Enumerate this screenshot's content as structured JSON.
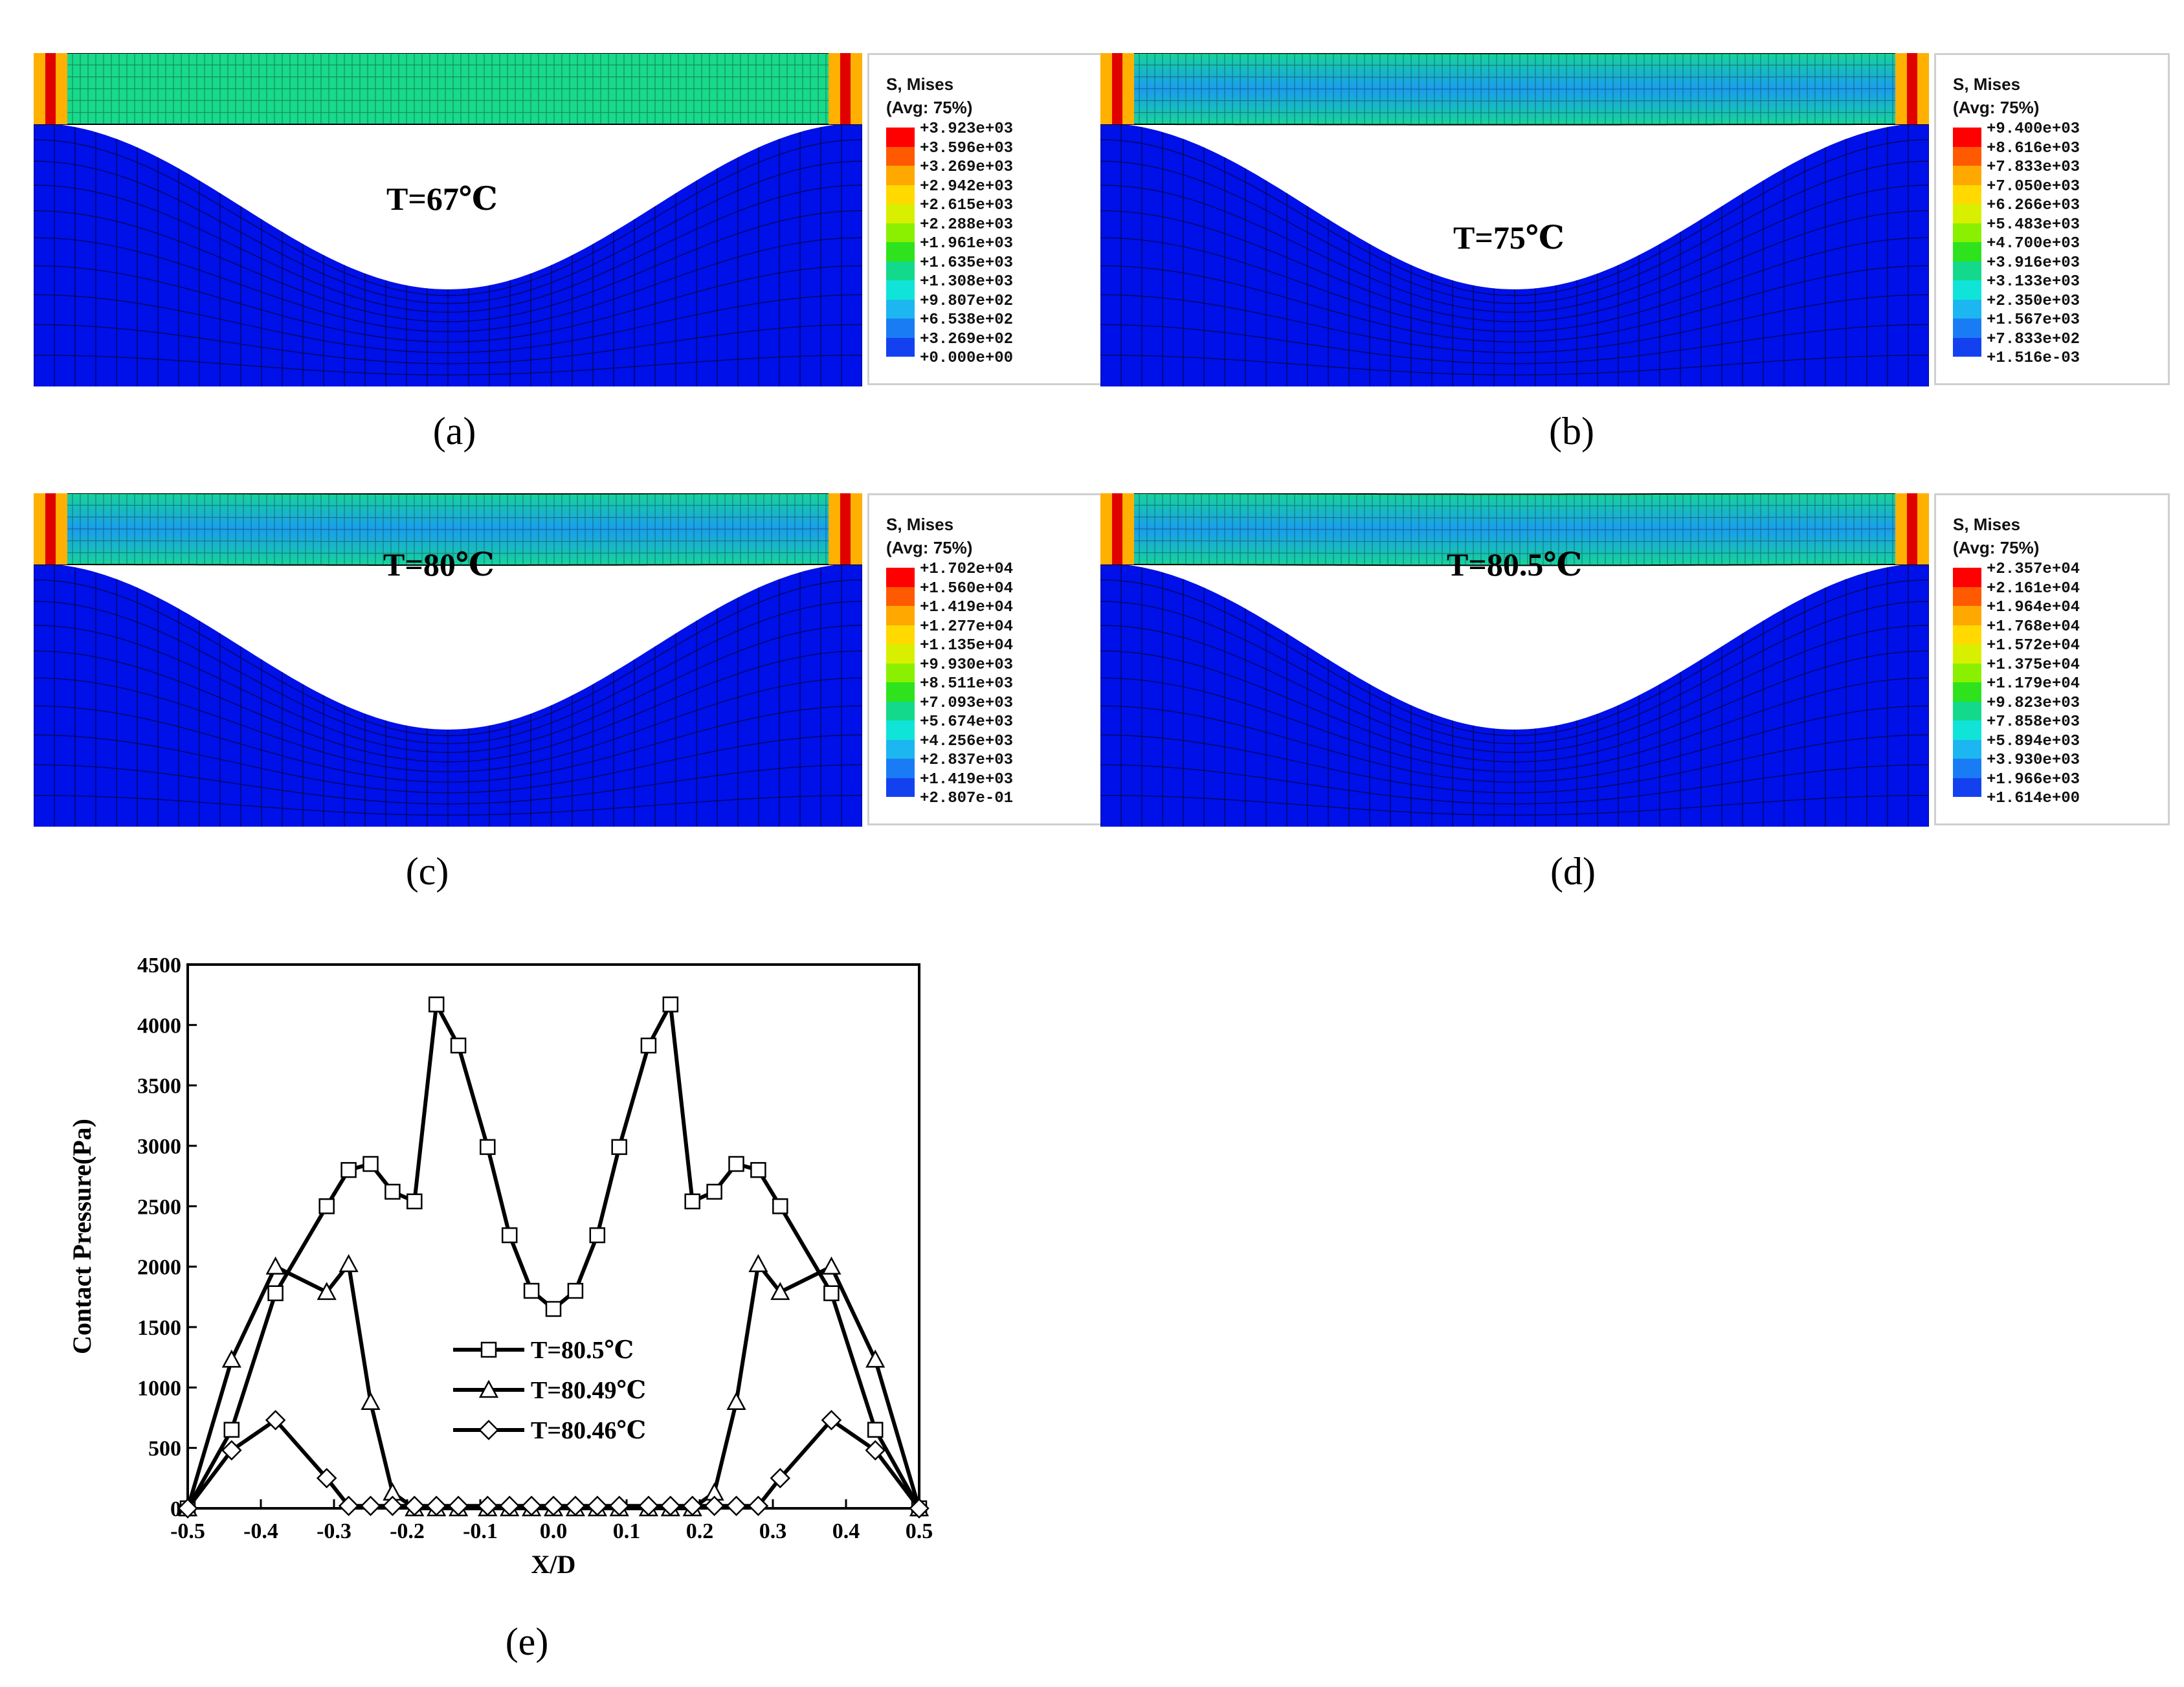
{
  "panels": [
    {
      "caption": "(a)",
      "temperature": "T=67℃",
      "legend": {
        "title": "S, Mises",
        "avg": "(Avg: 75%)",
        "values": [
          "+3.923e+03",
          "+3.596e+03",
          "+3.269e+03",
          "+2.942e+03",
          "+2.615e+03",
          "+2.288e+03",
          "+1.961e+03",
          "+1.635e+03",
          "+1.308e+03",
          "+9.807e+02",
          "+6.538e+02",
          "+3.269e+02",
          "+0.000e+00"
        ]
      }
    },
    {
      "caption": "(b)",
      "temperature": "T=75℃",
      "legend": {
        "title": "S, Mises",
        "avg": "(Avg: 75%)",
        "values": [
          "+9.400e+03",
          "+8.616e+03",
          "+7.833e+03",
          "+7.050e+03",
          "+6.266e+03",
          "+5.483e+03",
          "+4.700e+03",
          "+3.916e+03",
          "+3.133e+03",
          "+2.350e+03",
          "+1.567e+03",
          "+7.833e+02",
          "+1.516e-03"
        ]
      }
    },
    {
      "caption": "(c)",
      "temperature": "T=80℃",
      "legend": {
        "title": "S, Mises",
        "avg": "(Avg: 75%)",
        "values": [
          "+1.702e+04",
          "+1.560e+04",
          "+1.419e+04",
          "+1.277e+04",
          "+1.135e+04",
          "+9.930e+03",
          "+8.511e+03",
          "+7.093e+03",
          "+5.674e+03",
          "+4.256e+03",
          "+2.837e+03",
          "+1.419e+03",
          "+2.807e-01"
        ]
      }
    },
    {
      "caption": "(d)",
      "temperature": "T=80.5℃",
      "legend": {
        "title": "S, Mises",
        "avg": "(Avg: 75%)",
        "values": [
          "+2.357e+04",
          "+2.161e+04",
          "+1.964e+04",
          "+1.768e+04",
          "+1.572e+04",
          "+1.375e+04",
          "+1.179e+04",
          "+9.823e+03",
          "+7.858e+03",
          "+5.894e+03",
          "+3.930e+03",
          "+1.966e+03",
          "+1.614e+00"
        ]
      }
    }
  ],
  "colormap": [
    "#ff0000",
    "#ff5a00",
    "#ffa800",
    "#ffd900",
    "#d8f000",
    "#8af000",
    "#2ee31d",
    "#13d98c",
    "#10e4d8",
    "#1cb6f0",
    "#1a7cf5",
    "#1441f0",
    "#0017ff"
  ],
  "figure_e_caption": "(e)",
  "chart_data": {
    "type": "line",
    "title": "",
    "xlabel": "X/D",
    "ylabel": "Contact Pressure(Pa)",
    "xlim": [
      -0.5,
      0.5
    ],
    "ylim": [
      0,
      4500
    ],
    "xticks": [
      "-0.5",
      "-0.4",
      "-0.3",
      "-0.2",
      "-0.1",
      "0.0",
      "0.1",
      "0.2",
      "0.3",
      "0.4",
      "0.5"
    ],
    "yticks": [
      "0",
      "500",
      "1000",
      "1500",
      "2000",
      "2500",
      "3000",
      "3500",
      "4000",
      "4500"
    ],
    "legend_position": "lower-center",
    "series": [
      {
        "name": "T=80.5℃",
        "marker": "square",
        "x": [
          -0.5,
          -0.44,
          -0.38,
          -0.31,
          -0.28,
          -0.25,
          -0.22,
          -0.19,
          -0.16,
          -0.13,
          -0.09,
          -0.06,
          -0.03,
          0.0,
          0.03,
          0.06,
          0.09,
          0.13,
          0.16,
          0.19,
          0.22,
          0.25,
          0.28,
          0.31,
          0.38,
          0.44,
          0.5
        ],
        "y": [
          0,
          650,
          1780,
          2500,
          2800,
          2850,
          2620,
          2540,
          4170,
          3830,
          2990,
          2260,
          1800,
          1650,
          1800,
          2260,
          2990,
          3830,
          4170,
          2540,
          2620,
          2850,
          2800,
          2500,
          1780,
          650,
          0
        ]
      },
      {
        "name": "T=80.49℃",
        "marker": "triangle",
        "x": [
          -0.5,
          -0.44,
          -0.38,
          -0.31,
          -0.28,
          -0.25,
          -0.22,
          -0.19,
          -0.16,
          -0.13,
          -0.09,
          -0.06,
          -0.03,
          0.0,
          0.03,
          0.06,
          0.09,
          0.13,
          0.16,
          0.19,
          0.22,
          0.25,
          0.28,
          0.31,
          0.38,
          0.44,
          0.5
        ],
        "y": [
          0,
          1230,
          2000,
          1790,
          2020,
          880,
          130,
          0,
          0,
          0,
          0,
          0,
          0,
          0,
          0,
          0,
          0,
          0,
          0,
          0,
          130,
          880,
          2020,
          1790,
          2000,
          1230,
          0
        ]
      },
      {
        "name": "T=80.46℃",
        "marker": "diamond",
        "x": [
          -0.5,
          -0.44,
          -0.38,
          -0.31,
          -0.28,
          -0.25,
          -0.22,
          -0.19,
          -0.16,
          -0.13,
          -0.09,
          -0.06,
          -0.03,
          0.0,
          0.03,
          0.06,
          0.09,
          0.13,
          0.16,
          0.19,
          0.22,
          0.25,
          0.28,
          0.31,
          0.38,
          0.44,
          0.5
        ],
        "y": [
          0,
          480,
          730,
          250,
          20,
          20,
          20,
          20,
          20,
          20,
          20,
          20,
          20,
          20,
          20,
          20,
          20,
          20,
          20,
          20,
          20,
          20,
          20,
          250,
          730,
          480,
          0
        ]
      }
    ]
  }
}
